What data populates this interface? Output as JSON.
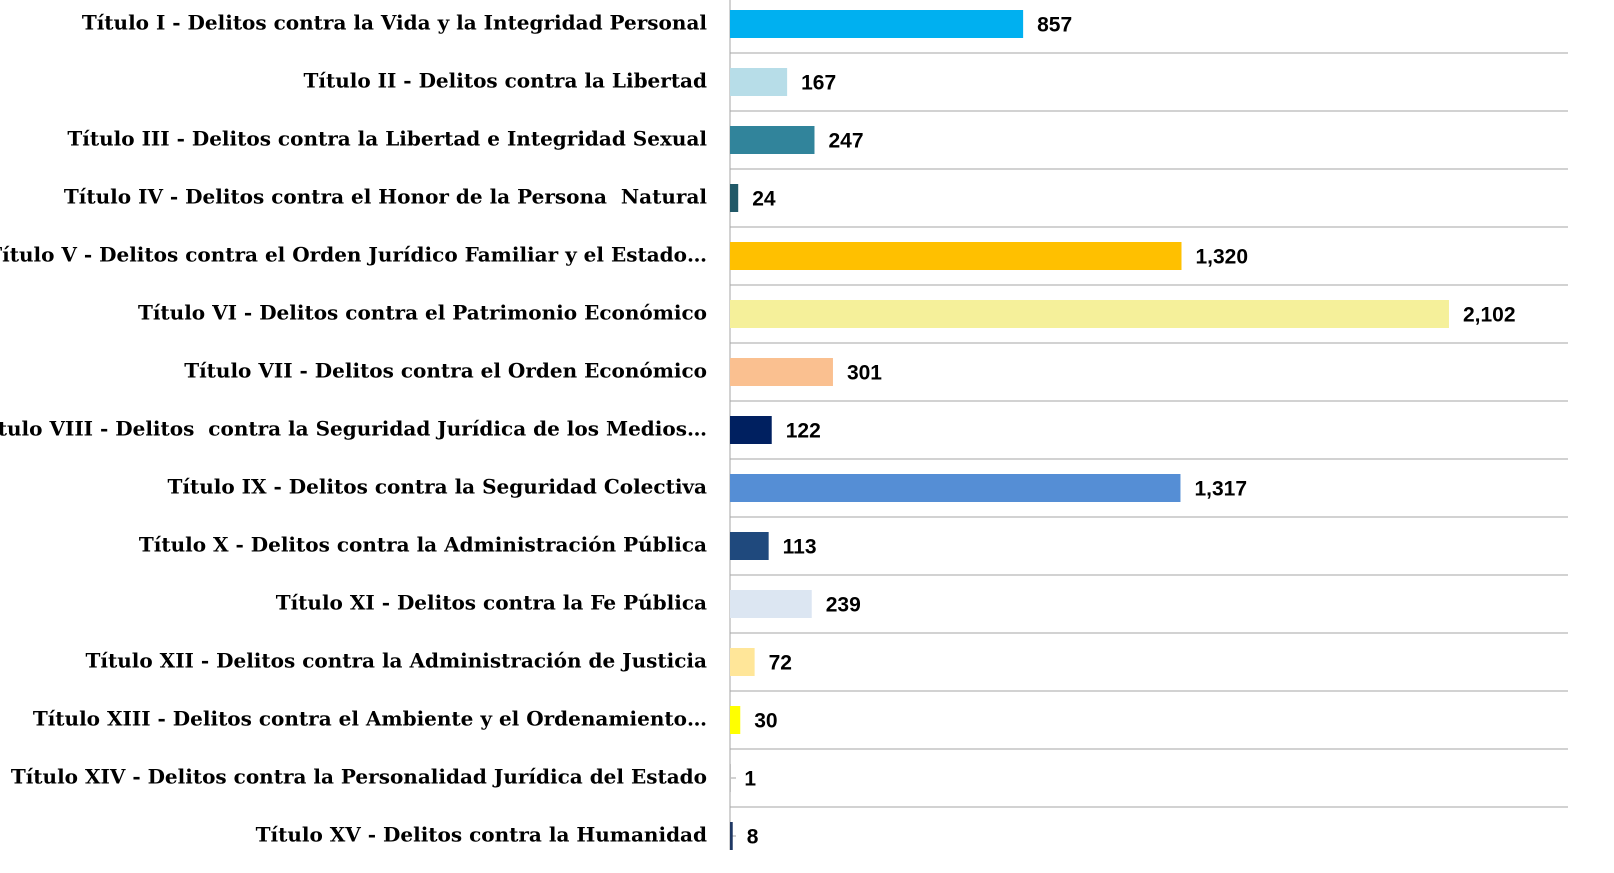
{
  "chart_data": {
    "type": "barh",
    "categories": [
      "Título I - Delitos contra la Vida y la Integridad Personal",
      "Título II - Delitos contra la Libertad",
      "Título III - Delitos contra la Libertad e Integridad Sexual",
      "Título IV - Delitos contra el Honor de la Persona  Natural",
      "Título V - Delitos contra el Orden Jurídico Familiar y el Estado…",
      "Título VI - Delitos contra el Patrimonio Económico",
      "Título VII - Delitos contra el Orden Económico",
      "Título VIII - Delitos  contra la Seguridad Jurídica de los Medios…",
      "Título IX - Delitos contra la Seguridad Colectiva",
      "Título X - Delitos contra la Administración Pública",
      "Título XI - Delitos contra la Fe Pública",
      "Título XII - Delitos contra la Administración de Justicia",
      "Título XIII - Delitos contra el Ambiente y el Ordenamiento…",
      "Título XIV - Delitos contra la Personalidad Jurídica del Estado",
      "Título XV - Delitos contra la Humanidad"
    ],
    "values": [
      857,
      167,
      247,
      24,
      1320,
      2102,
      301,
      122,
      1317,
      113,
      239,
      72,
      30,
      1,
      8
    ],
    "value_labels": [
      "857",
      "167",
      "247",
      "24",
      "1,320",
      "2,102",
      "301",
      "122",
      "1,317",
      "113",
      "239",
      "72",
      "30",
      "1",
      "8"
    ],
    "colors": [
      "#00b0f0",
      "#b7dde8",
      "#31849b",
      "#215968",
      "#ffc000",
      "#f5f09a",
      "#fac090",
      "#002060",
      "#558ed5",
      "#1f497d",
      "#dce6f2",
      "#ffe699",
      "#ffff00",
      "#bfbfbf",
      "#1f3864"
    ],
    "xlim": [
      0,
      2450
    ]
  }
}
